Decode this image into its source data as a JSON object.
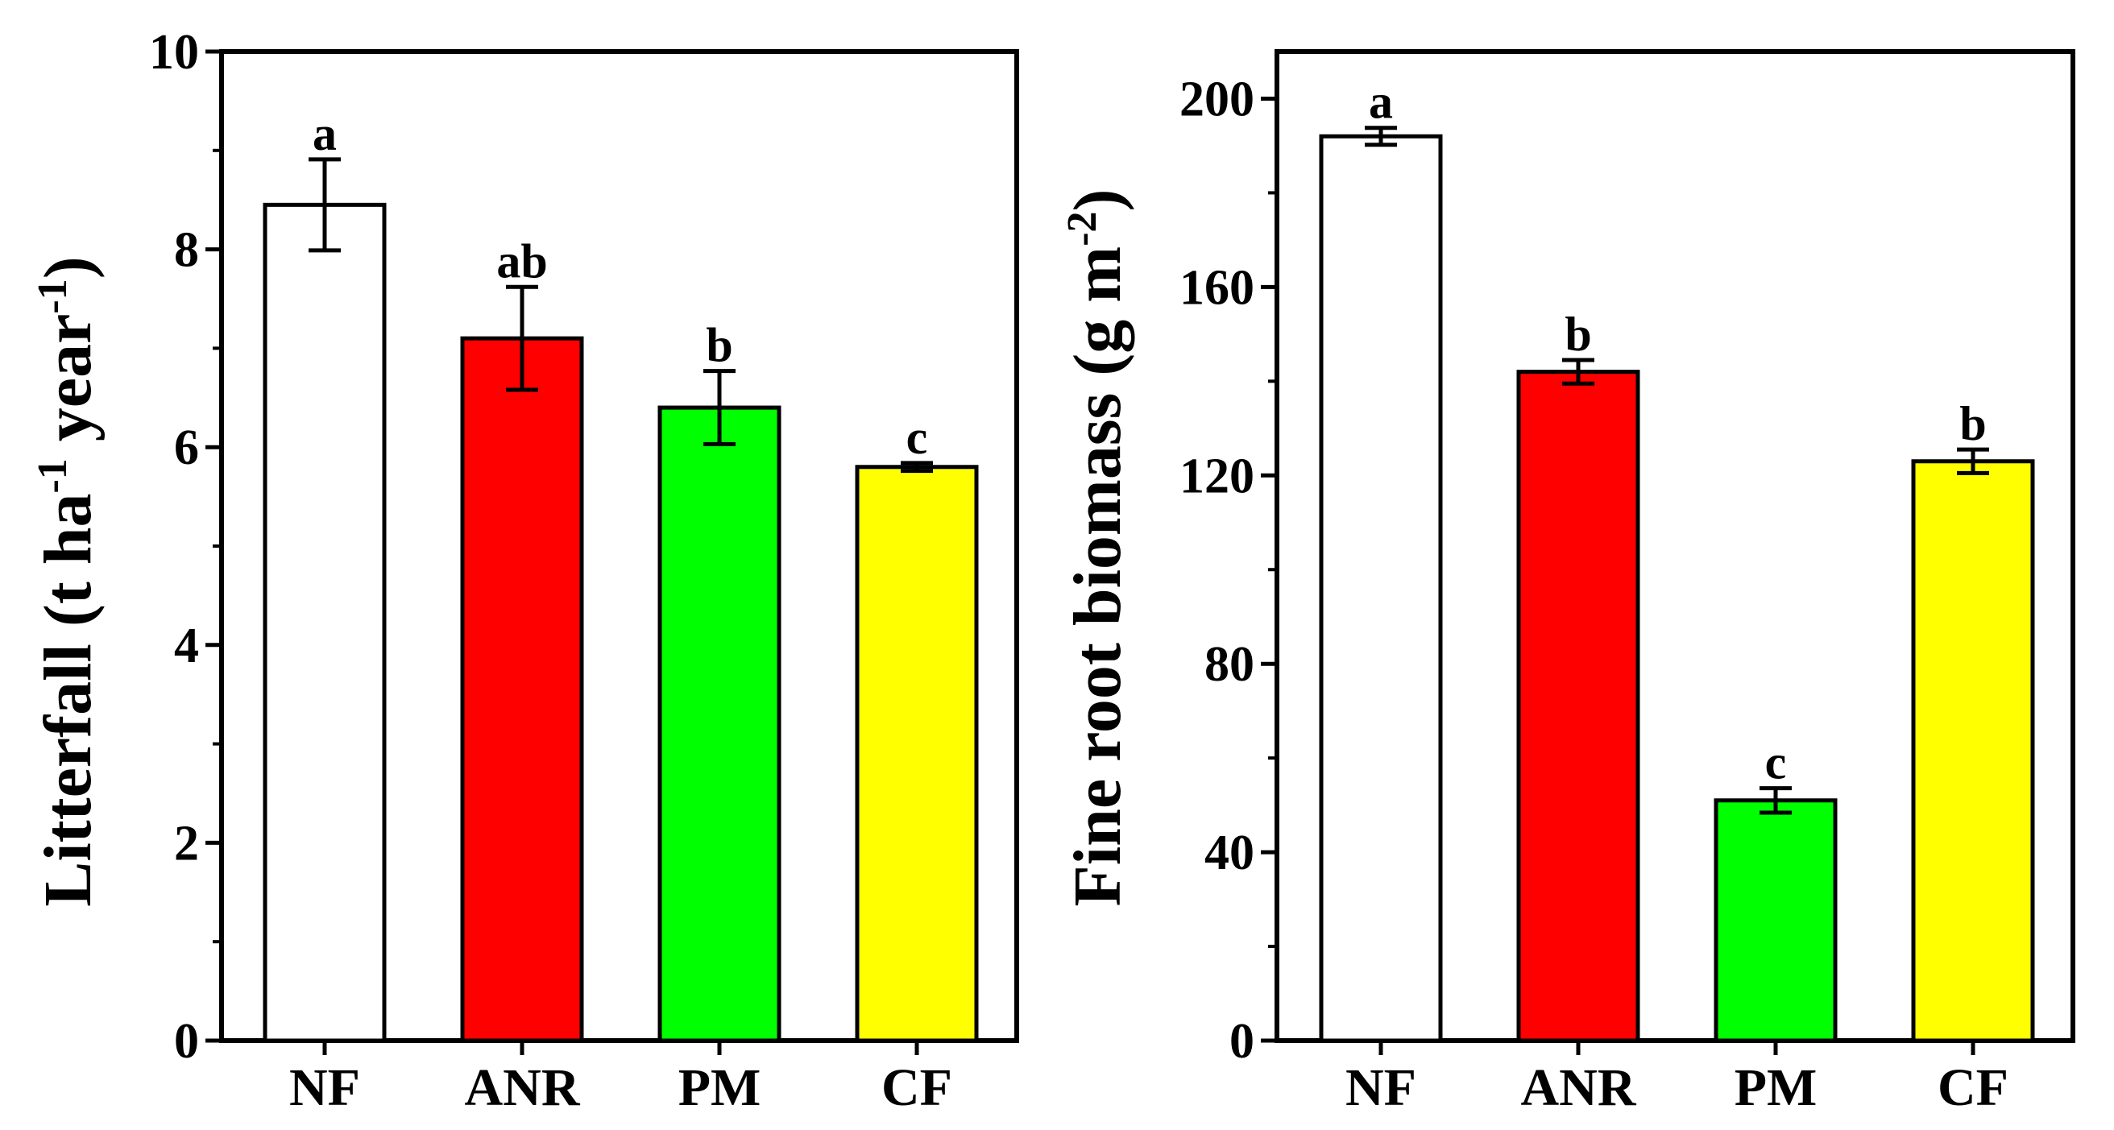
{
  "chart_data": [
    {
      "type": "bar",
      "categories": [
        "NF",
        "ANR",
        "PM",
        "CF"
      ],
      "values": [
        8.45,
        7.1,
        6.4,
        5.8
      ],
      "errors": [
        0.46,
        0.52,
        0.37,
        0.04
      ],
      "significance": [
        "a",
        "ab",
        "b",
        "c"
      ],
      "colors": [
        "#ffffff",
        "#ff0000",
        "#00ff00",
        "#ffff00"
      ],
      "ylabel": {
        "main": "Litterfall (t ha",
        "sup1": "-1",
        "mid": " year",
        "sup2": "-1",
        "end": ")"
      },
      "ylim": [
        0,
        10
      ],
      "yticks": [
        0,
        2,
        4,
        6,
        8,
        10
      ],
      "ytick_labels": [
        "0",
        "2",
        "4",
        "6",
        "8",
        "10"
      ]
    },
    {
      "type": "bar",
      "categories": [
        "NF",
        "ANR",
        "PM",
        "CF"
      ],
      "values": [
        192,
        142,
        51,
        123
      ],
      "errors": [
        1.8,
        2.5,
        2.6,
        2.5
      ],
      "significance": [
        "a",
        "b",
        "c",
        "b"
      ],
      "colors": [
        "#ffffff",
        "#ff0000",
        "#00ff00",
        "#ffff00"
      ],
      "ylabel": {
        "main": "Fine root biomass (g m",
        "sup1": "-2",
        "end": ")"
      },
      "ylim": [
        0,
        210
      ],
      "yticks": [
        0,
        40,
        80,
        120,
        160,
        200
      ],
      "ytick_labels": [
        "0",
        "40",
        "80",
        "120",
        "160",
        "200"
      ]
    }
  ]
}
